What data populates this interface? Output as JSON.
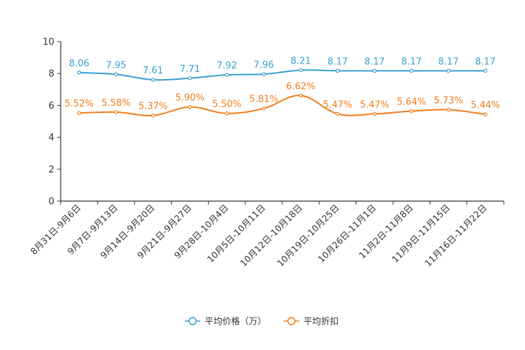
{
  "chart_data": {
    "type": "line",
    "title": "",
    "xlabel": "",
    "ylabel": "",
    "ylim": [
      0,
      10
    ],
    "yticks": [
      0,
      2,
      4,
      6,
      8,
      10
    ],
    "categories": [
      "8月31日-9月6日",
      "9月7日-9月13日",
      "9月14日-9月20日",
      "9月21日-9月27日",
      "9月28日-10月4日",
      "10月5日-10月11日",
      "10月12日-10月18日",
      "10月19日-10月25日",
      "10月26日-11月1日",
      "11月2日-11月8日",
      "11月9日-11月15日",
      "11月16日-11月22日"
    ],
    "series": [
      {
        "name": "平均价格（万）",
        "color": "#3a9fd1",
        "values": [
          8.06,
          7.95,
          7.61,
          7.71,
          7.92,
          7.96,
          8.21,
          8.17,
          8.17,
          8.17,
          8.17,
          8.17
        ],
        "labels": [
          "8.06",
          "7.95",
          "7.61",
          "7.71",
          "7.92",
          "7.96",
          "8.21",
          "8.17",
          "8.17",
          "8.17",
          "8.17",
          "8.17"
        ]
      },
      {
        "name": "平均折扣",
        "color": "#f07d1a",
        "values": [
          5.52,
          5.58,
          5.37,
          5.9,
          5.5,
          5.81,
          6.62,
          5.47,
          5.47,
          5.64,
          5.73,
          5.44
        ],
        "labels": [
          "5.52%",
          "5.58%",
          "5.37%",
          "5.90%",
          "5.50%",
          "5.81%",
          "6.62%",
          "5.47%",
          "5.47%",
          "5.64%",
          "5.73%",
          "5.44%"
        ]
      }
    ],
    "grid": false,
    "legend_position": "bottom-center"
  }
}
